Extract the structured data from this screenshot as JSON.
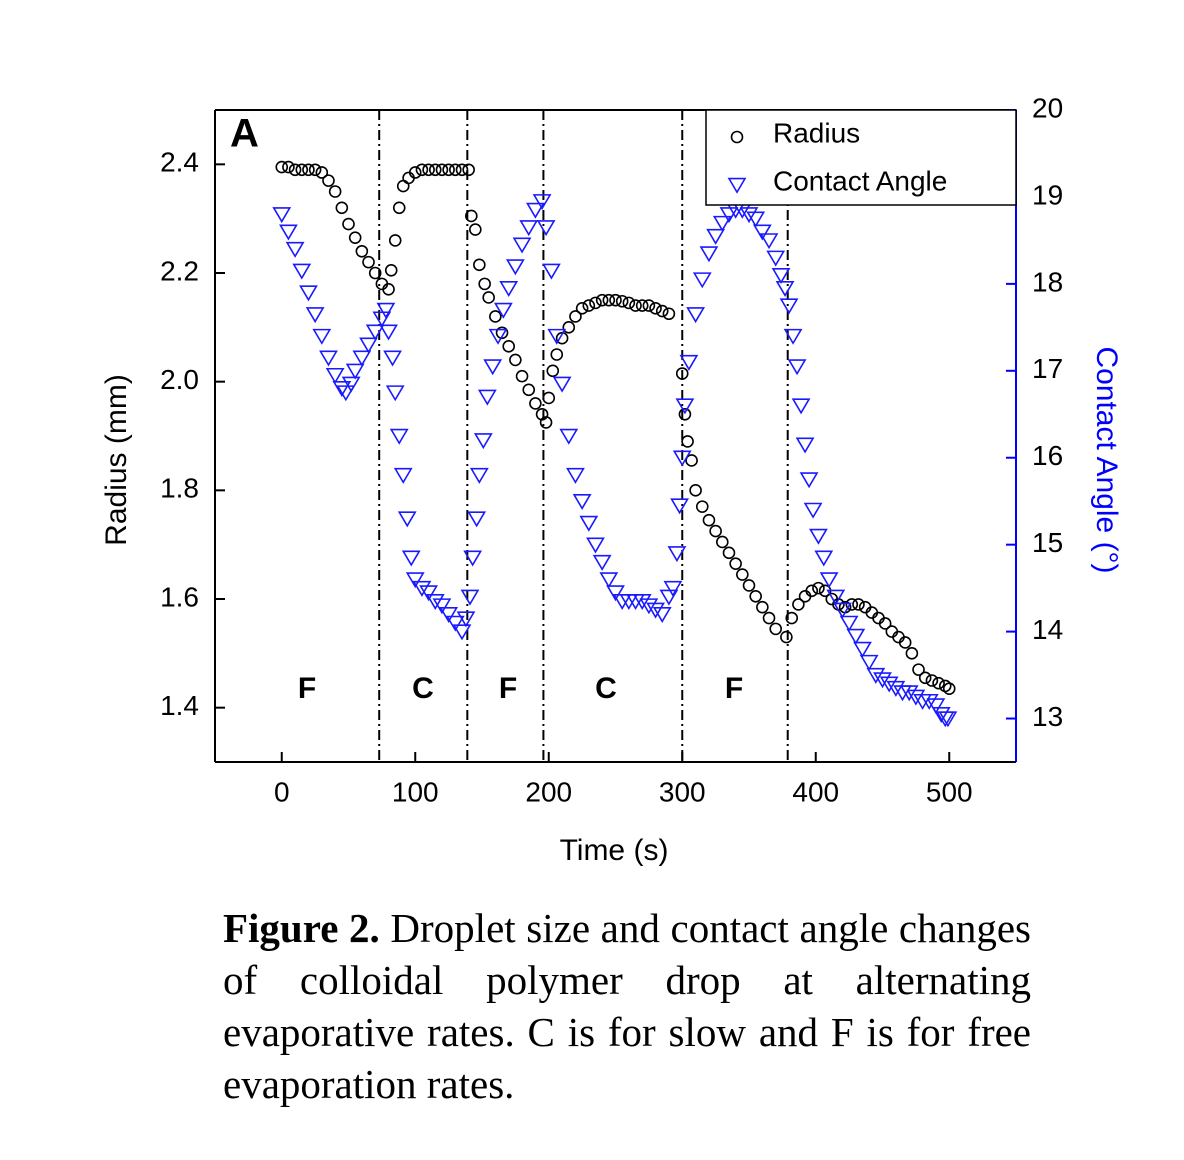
{
  "chart_data": {
    "type": "scatter",
    "panel_label": "A",
    "xlabel": "Time (s)",
    "ylabel": "Radius (mm)",
    "y2label": "Contact Angle (°)",
    "xlim": [
      -50,
      550
    ],
    "xticks": [
      0,
      100,
      200,
      300,
      400,
      500
    ],
    "ylim": [
      1.3,
      2.5
    ],
    "yticks": [
      1.4,
      1.6,
      1.8,
      {
        "value": 2,
        "label": "2.0"
      },
      2.2,
      2.4
    ],
    "y2lim": [
      12.5,
      20
    ],
    "y2ticks": [
      13,
      14,
      15,
      16,
      17,
      18,
      19,
      20
    ],
    "y2color": "#0000ff",
    "vlines": [
      73,
      139,
      196,
      300,
      379
    ],
    "region_labels": [
      "F",
      "C",
      "F",
      "C",
      "F"
    ],
    "legend": "upper right",
    "series": [
      {
        "name": "Radius",
        "color": "#000000",
        "marker": "circle",
        "x": [
          0,
          5,
          10,
          15,
          20,
          25,
          30,
          35,
          40,
          45,
          50,
          55,
          60,
          65,
          70,
          75,
          80,
          82,
          85,
          88,
          91,
          95,
          100,
          105,
          110,
          115,
          120,
          125,
          130,
          135,
          140,
          142,
          145,
          148,
          152,
          155,
          160,
          165,
          170,
          175,
          180,
          185,
          190,
          195,
          198,
          200,
          203,
          206,
          210,
          215,
          220,
          225,
          230,
          235,
          240,
          245,
          250,
          255,
          260,
          265,
          270,
          275,
          280,
          285,
          290,
          300,
          302,
          304,
          307,
          310,
          315,
          320,
          325,
          330,
          335,
          340,
          345,
          350,
          355,
          360,
          365,
          370,
          378,
          382,
          387,
          392,
          397,
          402,
          407,
          412,
          417,
          422,
          427,
          432,
          437,
          442,
          447,
          452,
          457,
          462,
          467,
          472,
          477,
          482,
          487,
          492,
          497,
          500
        ],
        "values": [
          2.395,
          2.395,
          2.39,
          2.39,
          2.39,
          2.39,
          2.385,
          2.37,
          2.35,
          2.32,
          2.29,
          2.265,
          2.24,
          2.22,
          2.2,
          2.18,
          2.17,
          2.205,
          2.26,
          2.32,
          2.36,
          2.375,
          2.385,
          2.39,
          2.39,
          2.39,
          2.39,
          2.39,
          2.39,
          2.39,
          2.39,
          2.305,
          2.28,
          2.215,
          2.18,
          2.155,
          2.12,
          2.09,
          2.065,
          2.04,
          2.01,
          1.985,
          1.96,
          1.94,
          1.925,
          1.97,
          2.02,
          2.05,
          2.08,
          2.1,
          2.12,
          2.135,
          2.14,
          2.145,
          2.15,
          2.15,
          2.15,
          2.148,
          2.145,
          2.14,
          2.14,
          2.14,
          2.135,
          2.13,
          2.125,
          2.015,
          1.94,
          1.89,
          1.855,
          1.8,
          1.77,
          1.745,
          1.725,
          1.705,
          1.685,
          1.665,
          1.645,
          1.625,
          1.605,
          1.585,
          1.565,
          1.545,
          1.53,
          1.565,
          1.59,
          1.605,
          1.615,
          1.62,
          1.615,
          1.6,
          1.59,
          1.585,
          1.59,
          1.59,
          1.585,
          1.575,
          1.565,
          1.555,
          1.54,
          1.53,
          1.52,
          1.5,
          1.47,
          1.455,
          1.45,
          1.445,
          1.44,
          1.435
        ]
      },
      {
        "name": "Contact Angle",
        "color": "#1a1aff",
        "marker": "triangle-down",
        "axis": "y2",
        "x": [
          0,
          5,
          10,
          15,
          20,
          25,
          30,
          35,
          40,
          45,
          48,
          52,
          55,
          60,
          65,
          70,
          75,
          78,
          80,
          83,
          85,
          88,
          91,
          94,
          97,
          100,
          105,
          110,
          115,
          120,
          125,
          130,
          135,
          138,
          141,
          143,
          146,
          148,
          151,
          154,
          158,
          162,
          166,
          170,
          175,
          180,
          185,
          190,
          195,
          198,
          202,
          206,
          210,
          215,
          220,
          225,
          230,
          235,
          240,
          245,
          250,
          255,
          260,
          265,
          270,
          275,
          280,
          285,
          290,
          293,
          296,
          298,
          300,
          302,
          305,
          310,
          315,
          320,
          325,
          330,
          335,
          340,
          345,
          350,
          355,
          360,
          365,
          370,
          374,
          377,
          380,
          383,
          386,
          389,
          392,
          395,
          398,
          402,
          406,
          410,
          415,
          420,
          425,
          430,
          435,
          440,
          445,
          450,
          455,
          460,
          465,
          470,
          475,
          480,
          485,
          490,
          494,
          497,
          499
        ],
        "values": [
          18.8,
          18.6,
          18.4,
          18.15,
          17.9,
          17.65,
          17.4,
          17.15,
          16.95,
          16.8,
          16.75,
          16.85,
          17.0,
          17.15,
          17.3,
          17.45,
          17.6,
          17.7,
          17.45,
          17.15,
          16.75,
          16.25,
          15.8,
          15.3,
          14.85,
          14.6,
          14.5,
          14.45,
          14.35,
          14.3,
          14.2,
          14.1,
          14.0,
          14.15,
          14.4,
          14.85,
          15.3,
          15.8,
          16.2,
          16.7,
          17.05,
          17.4,
          17.7,
          17.95,
          18.2,
          18.45,
          18.65,
          18.85,
          18.95,
          18.65,
          18.15,
          17.4,
          16.85,
          16.25,
          15.8,
          15.5,
          15.25,
          15.0,
          14.8,
          14.6,
          14.45,
          14.35,
          14.35,
          14.35,
          14.35,
          14.3,
          14.25,
          14.2,
          14.4,
          14.5,
          14.9,
          15.45,
          16.0,
          16.6,
          17.1,
          17.65,
          18.05,
          18.35,
          18.55,
          18.7,
          18.8,
          18.85,
          18.85,
          18.8,
          18.75,
          18.6,
          18.5,
          18.3,
          18.1,
          17.95,
          17.75,
          17.4,
          17.05,
          16.6,
          16.15,
          15.75,
          15.4,
          15.1,
          14.85,
          14.6,
          14.4,
          14.25,
          14.1,
          13.95,
          13.8,
          13.65,
          13.5,
          13.45,
          13.4,
          13.35,
          13.3,
          13.3,
          13.25,
          13.2,
          13.2,
          13.15,
          13.05,
          13.0,
          13.0
        ]
      }
    ]
  },
  "caption": {
    "label": "Figure 2.",
    "text": "Droplet size and contact angle changes of colloidal polymer drop at alternating evaporative rates. C is for slow and F is for free evaporation rates."
  }
}
